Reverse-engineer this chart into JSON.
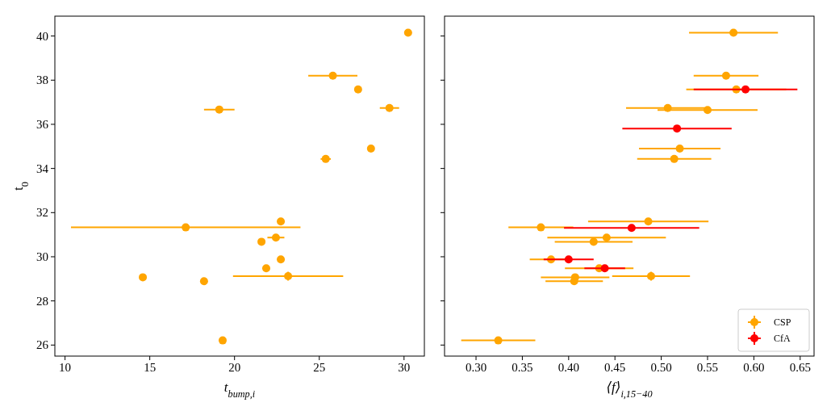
{
  "chart_data": [
    {
      "type": "scatter",
      "xlabel": "t$_{bump,i}$",
      "ylabel": "t$_{0}$",
      "xlim": [
        9.4,
        31.2
      ],
      "ylim": [
        25.5,
        40.9
      ],
      "xticks": [
        10,
        15,
        20,
        25,
        30
      ],
      "yticks": [
        26,
        28,
        30,
        32,
        34,
        36,
        38,
        40
      ],
      "marker": "circle",
      "legend": false,
      "grid": false,
      "series": [
        {
          "color": "#ffa500",
          "x": [
            30.24,
            25.8,
            27.29,
            29.14,
            19.1,
            28.05,
            25.38,
            22.73,
            17.12,
            22.44,
            21.59,
            22.73,
            21.87,
            23.16,
            14.59,
            18.2,
            19.3
          ],
          "values": [
            40.15,
            38.2,
            37.58,
            36.74,
            36.67,
            34.9,
            34.43,
            31.6,
            31.33,
            30.87,
            30.68,
            29.88,
            29.48,
            29.12,
            29.07,
            28.89,
            26.21
          ],
          "xerrors": [
            null,
            1.45,
            0.2,
            0.57,
            0.9,
            null,
            0.3,
            null,
            6.77,
            0.5,
            null,
            null,
            null,
            3.25,
            0.2,
            null,
            null
          ],
          "errors": [
            null,
            null,
            null,
            null,
            null,
            null,
            null,
            null,
            null,
            null,
            null,
            null,
            null,
            0.2,
            null,
            null,
            null
          ]
        }
      ]
    },
    {
      "type": "scatter",
      "xlabel": "⟨f⟩$_{i,15−40}$",
      "xlim": [
        0.266,
        0.665
      ],
      "ylim": [
        25.5,
        40.9
      ],
      "xticks": [
        {
          "value": 0.3,
          "label": "0.30"
        },
        0.35,
        {
          "value": 0.4,
          "label": "0.40"
        },
        0.45,
        {
          "value": 0.5,
          "label": "0.50"
        },
        0.55,
        {
          "value": 0.6,
          "label": "0.60"
        },
        0.65
      ],
      "yticks": [
        26,
        28,
        30,
        32,
        34,
        36,
        38,
        40
      ],
      "tick_labels": "x",
      "marker": "circle",
      "legend": "bottom right",
      "grid": false,
      "series": [
        {
          "name": "CSP",
          "color": "#ffa500",
          "x": [
            0.578,
            0.57,
            0.581,
            0.507,
            0.55,
            0.52,
            0.514,
            0.486,
            0.37,
            0.441,
            0.427,
            0.381,
            0.433,
            0.489,
            0.407,
            0.406,
            0.324
          ],
          "values": [
            40.15,
            38.2,
            37.58,
            36.74,
            36.65,
            34.9,
            34.43,
            31.6,
            31.33,
            30.87,
            30.68,
            29.88,
            29.48,
            29.12,
            29.07,
            28.89,
            26.21
          ],
          "xerrors": [
            0.048,
            0.035,
            0.054,
            0.045,
            0.054,
            0.044,
            0.04,
            0.065,
            0.035,
            0.064,
            0.042,
            0.023,
            0.037,
            0.042,
            0.037,
            0.031,
            0.04
          ],
          "errors": [
            null,
            null,
            null,
            null,
            null,
            null,
            null,
            null,
            null,
            null,
            null,
            null,
            null,
            0.2,
            null,
            null,
            null
          ]
        },
        {
          "name": "CfA",
          "color": "#ff0000",
          "x": [
            0.591,
            0.517,
            0.468,
            0.4,
            0.439
          ],
          "values": [
            37.58,
            35.81,
            31.31,
            29.88,
            29.48
          ],
          "xerrors": [
            0.056,
            0.059,
            0.073,
            0.027,
            0.022
          ]
        }
      ]
    }
  ]
}
